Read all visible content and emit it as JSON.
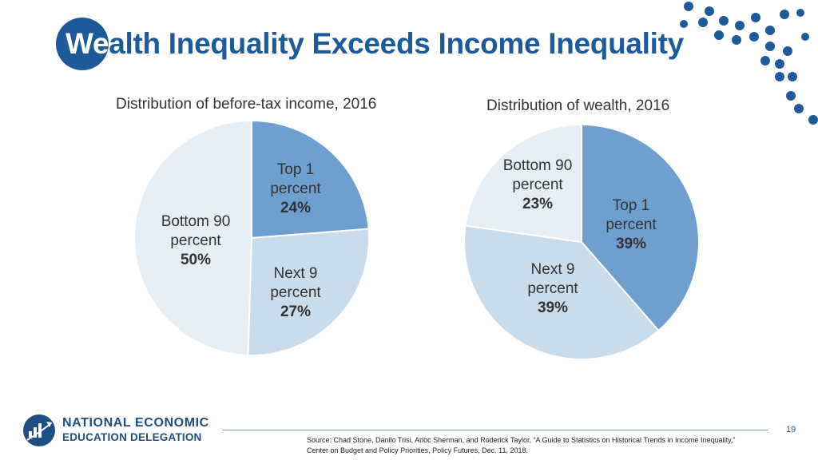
{
  "slide": {
    "title_first": "We",
    "title_rest": "alth Inequality Exceeds Income Inequality",
    "page_number": "19",
    "source_line1": "Source: Chad Stone, Danilo Trisi, Arloc Sherman, and Roderick Taylor, “A Guide to Statistics on Historical Trends in Income Inequality,”",
    "source_line2": "Center on Budget and Policy Priorities, Policy Futures, Dec. 11, 2018.",
    "logo_line1": "NATIONAL ECONOMIC",
    "logo_line2": "EDUCATION DELEGATION"
  },
  "colors": {
    "brand": "#1d5a99",
    "top1": "#6f9fcf",
    "next9": "#c9dceb",
    "bottom90": "#e6eef5"
  },
  "chart_data": [
    {
      "type": "pie",
      "title": "Distribution of before-tax income, 2016",
      "slices": [
        {
          "label_lines": [
            "Top 1",
            "percent"
          ],
          "value_label": "24%",
          "value": 24,
          "color": "#6f9fcf"
        },
        {
          "label_lines": [
            "Next 9",
            "percent"
          ],
          "value_label": "27%",
          "value": 27,
          "color": "#c9dceb"
        },
        {
          "label_lines": [
            "Bottom 90",
            "percent"
          ],
          "value_label": "50%",
          "value": 50,
          "color": "#e6eef5"
        }
      ]
    },
    {
      "type": "pie",
      "title": "Distribution of wealth, 2016",
      "slices": [
        {
          "label_lines": [
            "Top 1",
            "percent"
          ],
          "value_label": "39%",
          "value": 39,
          "color": "#6f9fcf"
        },
        {
          "label_lines": [
            "Next 9",
            "percent"
          ],
          "value_label": "39%",
          "value": 39,
          "color": "#c9dceb"
        },
        {
          "label_lines": [
            "Bottom 90",
            "percent"
          ],
          "value_label": "23%",
          "value": 23,
          "color": "#e6eef5"
        }
      ]
    }
  ]
}
